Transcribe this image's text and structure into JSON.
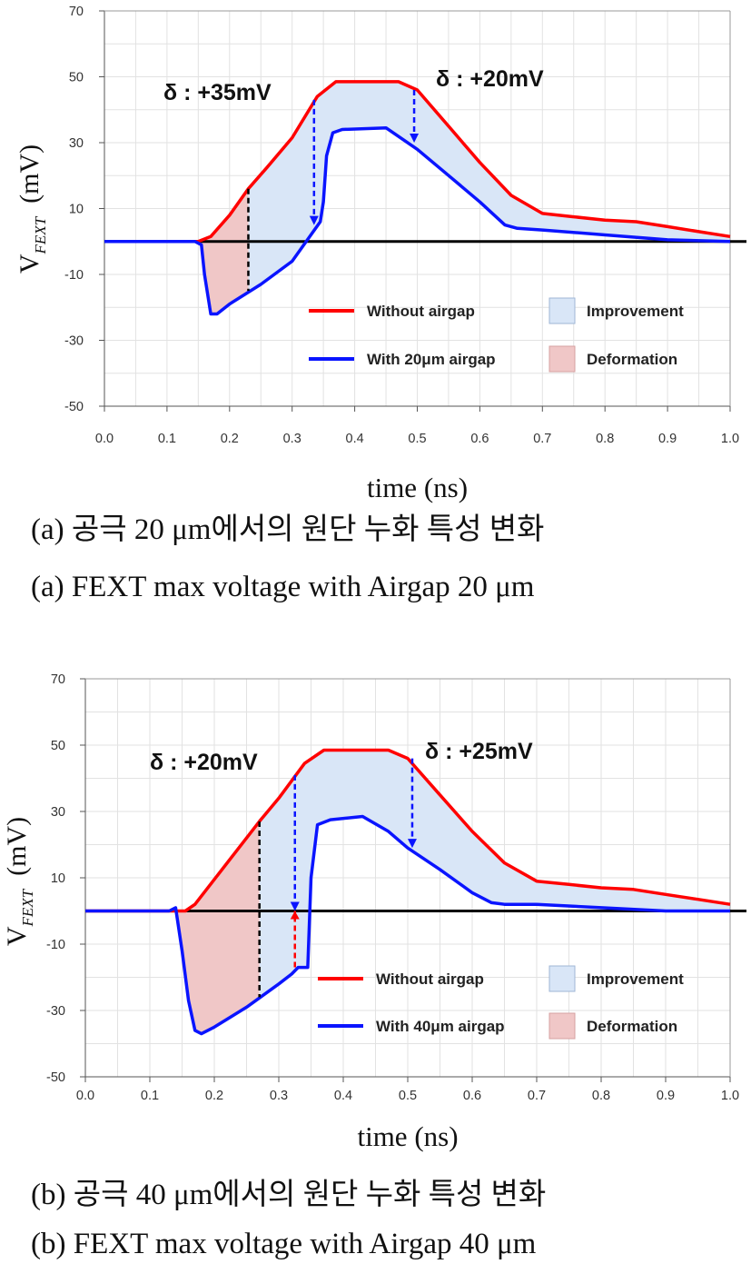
{
  "figure": {
    "panels": [
      {
        "captions": [
          "(a) 공극 20 μm에서의 원단 누화 특성 변화",
          "(a) FEXT max voltage with Airgap 20 μm"
        ]
      },
      {
        "captions": [
          "(b) 공극 40 μm에서의 원단 누화 특성 변화",
          "(b) FEXT max voltage with Airgap 40 μm"
        ]
      }
    ]
  },
  "chart_data": [
    {
      "type": "line",
      "xlabel": "time (ns)",
      "ylabel": "V_FEXT (mV)",
      "xlim": [
        0.0,
        1.0
      ],
      "ylim": [
        -50,
        70
      ],
      "xticks": [
        "0.0",
        "0.1",
        "0.2",
        "0.3",
        "0.4",
        "0.5",
        "0.6",
        "0.7",
        "0.8",
        "0.9",
        "1.0"
      ],
      "yticks": [
        "70",
        "50",
        "30",
        "10",
        "-10",
        "-30",
        "-50"
      ],
      "grid": true,
      "legend_position": "bottom-right",
      "colors": {
        "without": "#ff0000",
        "with": "#0a14ff",
        "improvement": "#d9e6f7",
        "deformation": "#f0c7c7"
      },
      "series": [
        {
          "name": "Without airgap",
          "color": "#ff0000",
          "x": [
            0.0,
            0.15,
            0.17,
            0.2,
            0.23,
            0.26,
            0.3,
            0.34,
            0.37,
            0.42,
            0.47,
            0.5,
            0.55,
            0.6,
            0.65,
            0.7,
            0.75,
            0.8,
            0.85,
            0.9,
            0.95,
            1.0
          ],
          "y": [
            0,
            0,
            1.5,
            8,
            16,
            22.5,
            31.5,
            44,
            48.5,
            48.5,
            48.5,
            46,
            35,
            24,
            14,
            8.5,
            7.5,
            6.5,
            6,
            4.5,
            3,
            1.5
          ]
        },
        {
          "name": "With 20μm airgap",
          "color": "#0a14ff",
          "x": [
            0.0,
            0.145,
            0.155,
            0.16,
            0.17,
            0.18,
            0.2,
            0.25,
            0.3,
            0.345,
            0.35,
            0.355,
            0.365,
            0.38,
            0.45,
            0.5,
            0.55,
            0.6,
            0.64,
            0.66,
            0.7,
            0.8,
            0.9,
            1.0
          ],
          "y": [
            0,
            0,
            -1,
            -10,
            -22,
            -22,
            -19,
            -13,
            -6,
            6,
            12,
            26,
            33,
            34,
            34.5,
            28,
            20,
            12,
            5,
            4,
            3.5,
            2,
            0.5,
            0
          ]
        }
      ],
      "baseline": {
        "y": 0
      },
      "shaded_regions": [
        {
          "label": "Deformation",
          "x_from": 0.15,
          "x_to": 0.23
        },
        {
          "label": "Improvement",
          "x_from": 0.23,
          "x_to": 1.0
        }
      ],
      "annotations": [
        {
          "text": "δ : +35mV",
          "arrow_x": 0.335,
          "arrow_from_y": 43,
          "arrow_to_y": 5
        },
        {
          "text": "δ : +20mV",
          "arrow_x": 0.495,
          "arrow_from_y": 46,
          "arrow_to_y": 30
        }
      ],
      "dashed_markers": [
        {
          "x": 0.23,
          "y_from": 16,
          "y_to": -15,
          "color": "#000000"
        }
      ]
    },
    {
      "type": "line",
      "xlabel": "time (ns)",
      "ylabel": "V_FEXT (mV)",
      "xlim": [
        0.0,
        1.0
      ],
      "ylim": [
        -50,
        70
      ],
      "xticks": [
        "0.0",
        "0.1",
        "0.2",
        "0.3",
        "0.4",
        "0.5",
        "0.6",
        "0.7",
        "0.8",
        "0.9",
        "1.0"
      ],
      "yticks": [
        "70",
        "50",
        "30",
        "10",
        "-10",
        "-30",
        "-50"
      ],
      "grid": true,
      "legend_position": "bottom-right",
      "colors": {
        "without": "#ff0000",
        "with": "#0a14ff",
        "improvement": "#d9e6f7",
        "deformation": "#f0c7c7"
      },
      "series": [
        {
          "name": "Without airgap",
          "color": "#ff0000",
          "x": [
            0.0,
            0.155,
            0.17,
            0.2,
            0.23,
            0.27,
            0.3,
            0.34,
            0.37,
            0.42,
            0.47,
            0.5,
            0.55,
            0.6,
            0.65,
            0.7,
            0.75,
            0.8,
            0.85,
            0.9,
            0.95,
            1.0
          ],
          "y": [
            0,
            0,
            2,
            9.5,
            17,
            27,
            34,
            44.5,
            48.5,
            48.5,
            48.5,
            46,
            35,
            24,
            14.5,
            9,
            8,
            7,
            6.5,
            5,
            3.5,
            2
          ]
        },
        {
          "name": "With 40μm airgap",
          "color": "#0a14ff",
          "x": [
            0.0,
            0.13,
            0.14,
            0.15,
            0.16,
            0.17,
            0.18,
            0.2,
            0.25,
            0.3,
            0.32,
            0.33,
            0.345,
            0.35,
            0.36,
            0.38,
            0.43,
            0.47,
            0.5,
            0.55,
            0.6,
            0.63,
            0.65,
            0.7,
            0.8,
            0.9,
            1.0
          ],
          "y": [
            0,
            0,
            1,
            -12,
            -27,
            -36,
            -37,
            -35,
            -29,
            -22,
            -19,
            -17,
            -17,
            10,
            26,
            27.5,
            28.5,
            24,
            19,
            12.5,
            5.5,
            2.5,
            2,
            2,
            1,
            0,
            0
          ]
        }
      ],
      "baseline": {
        "y": 0
      },
      "shaded_regions": [
        {
          "label": "Deformation",
          "x_from": 0.14,
          "x_to": 0.27
        },
        {
          "label": "Improvement",
          "x_from": 0.27,
          "x_to": 1.0
        }
      ],
      "annotations": [
        {
          "text": "δ : +20mV",
          "arrow_x": 0.325,
          "arrow_from_y": 41,
          "arrow_to_y": 0
        },
        {
          "text": "δ : +25mV",
          "arrow_x": 0.507,
          "arrow_from_y": 46,
          "arrow_to_y": 19
        }
      ],
      "dashed_markers": [
        {
          "x": 0.27,
          "y_from": 27,
          "y_to": -26,
          "color": "#000000"
        },
        {
          "x": 0.325,
          "y_from": -17,
          "y_to": 0,
          "color": "#ff0000"
        }
      ]
    }
  ]
}
